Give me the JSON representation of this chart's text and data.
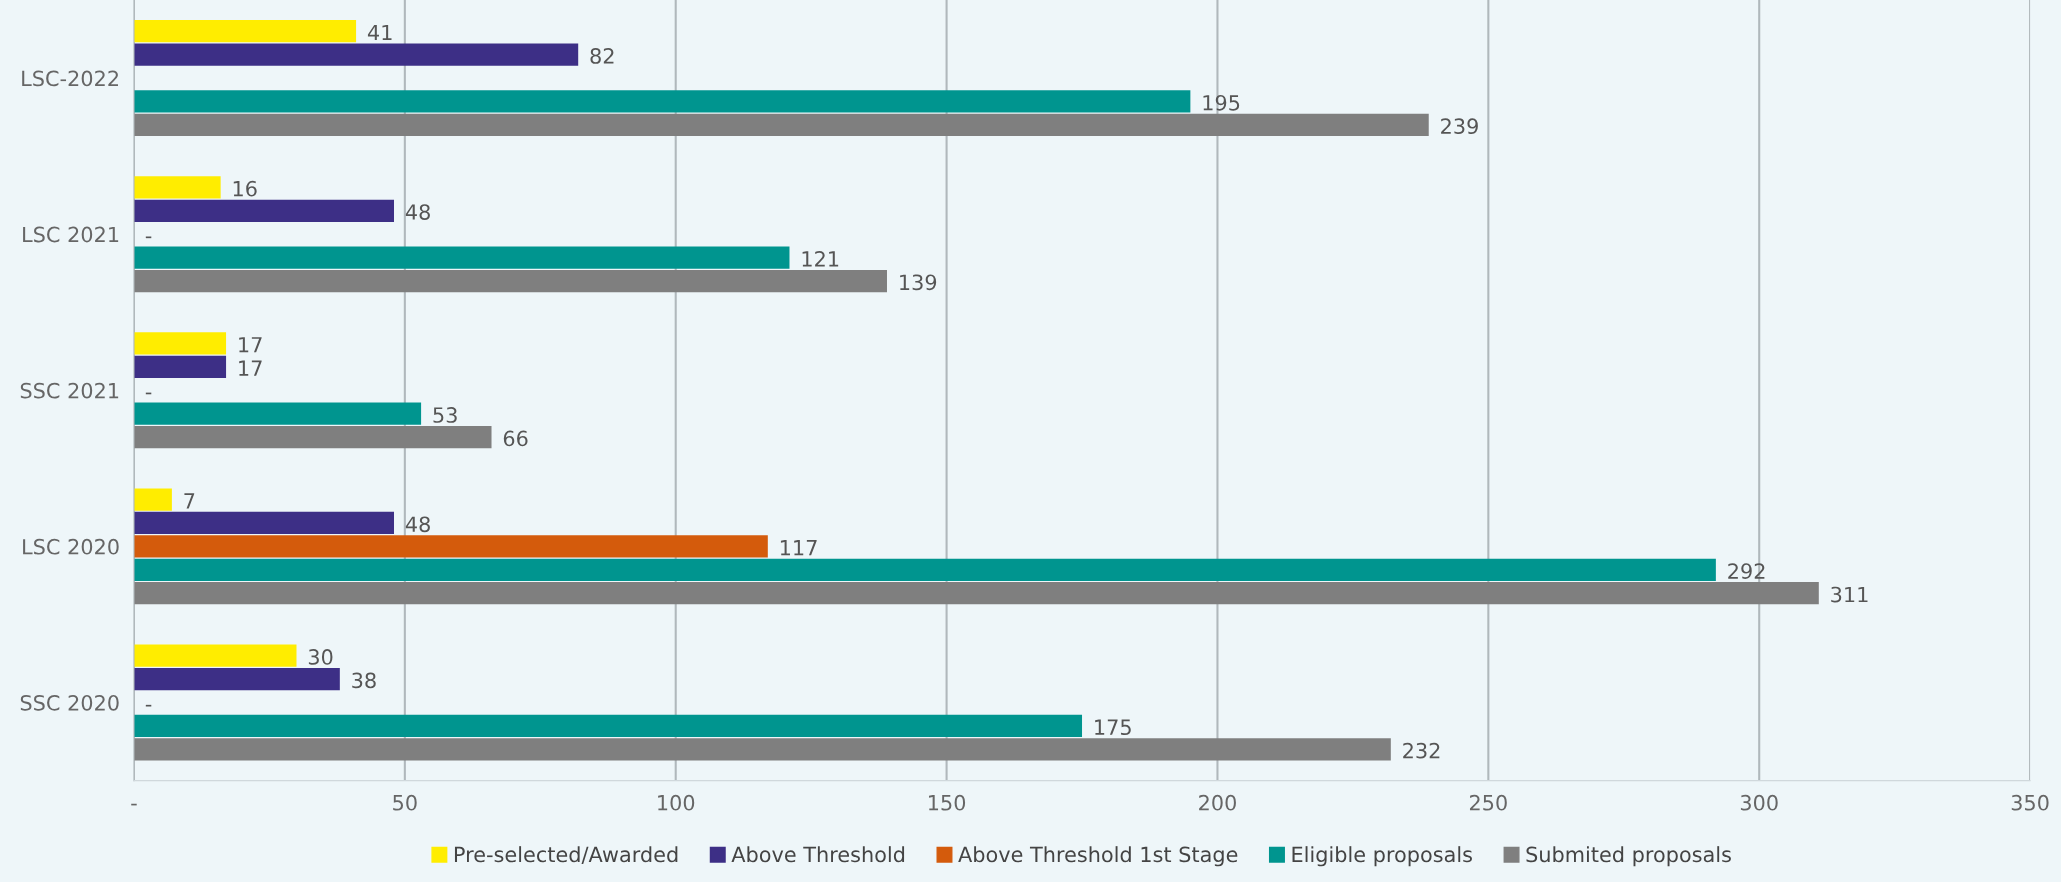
{
  "chart_data": {
    "type": "bar",
    "orientation": "horizontal",
    "categories": [
      "LSC-2022",
      "LSC 2021",
      "SSC 2021",
      "LSC 2020",
      "SSC 2020"
    ],
    "series": [
      {
        "name": "Pre-selected/Awarded",
        "color": "#ffed00",
        "values": [
          41,
          16,
          17,
          7,
          30
        ]
      },
      {
        "name": "Above Threshold",
        "color": "#3d2f86",
        "values": [
          82,
          48,
          17,
          48,
          38
        ]
      },
      {
        "name": "Above Threshold 1st Stage",
        "color": "#d45b0c",
        "values": [
          null,
          0,
          0,
          117,
          0
        ],
        "value_labels": [
          null,
          "-",
          "-",
          "117",
          "-"
        ]
      },
      {
        "name": "Eligible proposals",
        "color": "#00958f",
        "values": [
          195,
          121,
          53,
          292,
          175
        ]
      },
      {
        "name": "Submited proposals",
        "color": "#7f7f7f",
        "values": [
          239,
          139,
          66,
          311,
          232
        ]
      }
    ],
    "xlim": [
      0,
      350
    ],
    "xticks": [
      {
        "value": 0,
        "label": "-"
      },
      50,
      100,
      150,
      200,
      250,
      300,
      350
    ],
    "grid": "x",
    "legend": "bottom",
    "data_labels": true
  }
}
